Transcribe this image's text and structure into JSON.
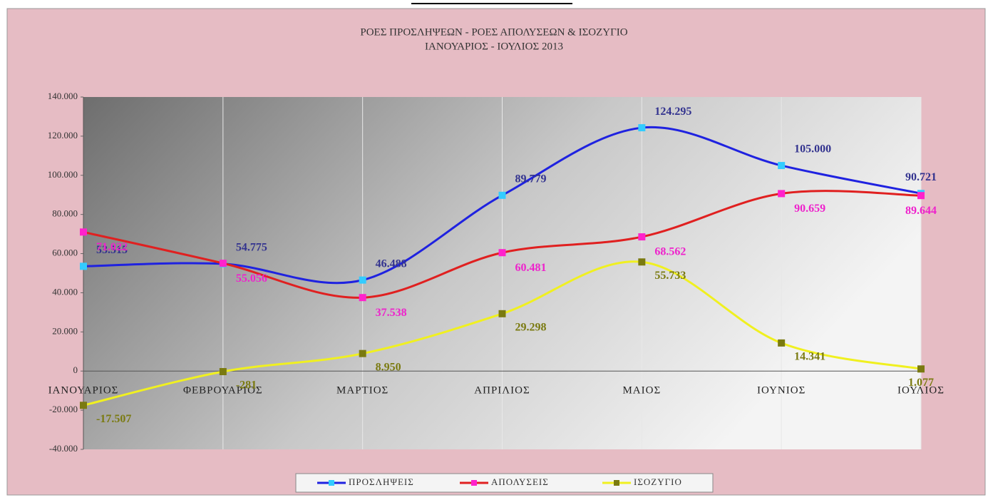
{
  "chart_data": {
    "type": "line",
    "title": "ΡΟΕΣ ΠΡΟΣΛΗΨΕΩΝ - ΡΟΕΣ ΑΠΟΛΥΣΕΩΝ & ΙΣΟΖΥΓΙΟ",
    "subtitle": "ΙΑΝΟΥΑΡΙΟΣ - ΙΟΥΛΙΟΣ 2013",
    "categories": [
      "ΙΑΝΟΥΑΡΙΟΣ",
      "ΦΕΒΡΟΥΑΡΙΟΣ",
      "ΜΑΡΤΙΟΣ",
      "ΑΠΡΙΛΙΟΣ",
      "ΜΑΙΟΣ",
      "ΙΟΥΝΙΟΣ",
      "ΙΟΥΛΙΟΣ"
    ],
    "series": [
      {
        "name": "ΠΡΟΣΛΗΨΕΙΣ",
        "color": "#1f22e0",
        "marker_color": "#33ccff",
        "label_color": "#33338f",
        "values": [
          53515,
          54775,
          46488,
          89779,
          124295,
          105000,
          90721
        ],
        "value_labels": [
          "53.515",
          "54.775",
          "46.488",
          "89.779",
          "124.295",
          "105.000",
          "90.721"
        ]
      },
      {
        "name": "ΑΠΟΛΥΣΕΙΣ",
        "color": "#e02020",
        "marker_color": "#ff22cc",
        "label_color": "#ee22cc",
        "values": [
          71022,
          55056,
          37538,
          60481,
          68562,
          90659,
          89644
        ],
        "value_labels": [
          "71.022",
          "55.056",
          "37.538",
          "60.481",
          "68.562",
          "90.659",
          "89.644"
        ]
      },
      {
        "name": "ΙΣΟΖΥΓΙΟ",
        "color": "#f0f020",
        "marker_color": "#7a7a10",
        "label_color": "#7a7a10",
        "values": [
          -17507,
          -281,
          8950,
          29298,
          55733,
          14341,
          1077
        ],
        "value_labels": [
          "-17.507",
          "-281",
          "8.950",
          "29.298",
          "55.733",
          "14.341",
          "1.077"
        ]
      }
    ],
    "ylim": [
      -40000,
      140000
    ],
    "yticks": [
      {
        "value": -40000,
        "label": "-40.000"
      },
      {
        "value": -20000,
        "label": "-20.000"
      },
      0,
      {
        "value": 20000,
        "label": "20.000"
      },
      {
        "value": 40000,
        "label": "40.000"
      },
      {
        "value": 60000,
        "label": "60.000"
      },
      {
        "value": 80000,
        "label": "80.000"
      },
      {
        "value": 100000,
        "label": "100.000"
      },
      {
        "value": 120000,
        "label": "120.000"
      },
      {
        "value": 140000,
        "label": "140.000"
      }
    ],
    "grid": true,
    "legend": "bottom"
  }
}
